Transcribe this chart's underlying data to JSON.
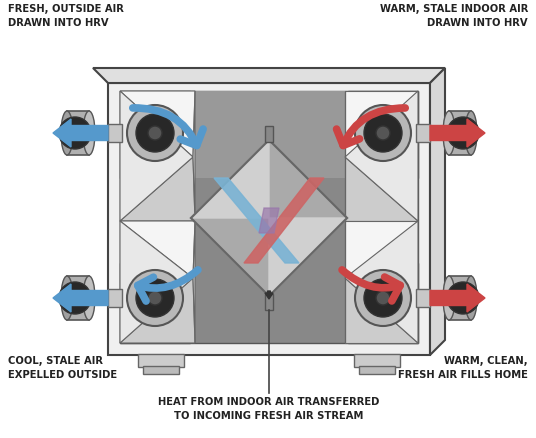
{
  "bg_color": "#ffffff",
  "text_color": "#222222",
  "blue": "#5599cc",
  "red": "#cc4444",
  "labels": {
    "top_left": "FRESH, OUTSIDE AIR\nDRAWN INTO HRV",
    "top_right": "WARM, STALE INDOOR AIR\nDRAWN INTO HRV",
    "bot_left": "COOL, STALE AIR\nEXPELLED OUTSIDE",
    "bot_right": "WARM, CLEAN,\nFRESH AIR FILLS HOME",
    "bottom": "HEAT FROM INDOOR AIR TRANSFERRED\nTO INCOMING FRESH AIR STREAM"
  },
  "figsize": [
    5.36,
    4.39
  ],
  "dpi": 100
}
